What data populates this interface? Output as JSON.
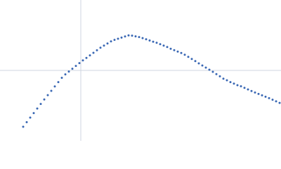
{
  "chart_data": {
    "type": "scatter",
    "xlim": [
      0,
      400
    ],
    "ylim": [
      0,
      200
    ],
    "reference_lines": {
      "x": 115,
      "y": 100,
      "color": "#cfd6e0"
    },
    "series": [
      {
        "color": "#3a68b4",
        "x": [
          33,
          38,
          43,
          48,
          53,
          58,
          63,
          68,
          73,
          78,
          83,
          88,
          93,
          98,
          103,
          108,
          113,
          118,
          123,
          128,
          133,
          138,
          143,
          148,
          153,
          158,
          163,
          168,
          173,
          178,
          183,
          188,
          193,
          198,
          203,
          208,
          213,
          218,
          223,
          228,
          233,
          238,
          243,
          248,
          253,
          258,
          263,
          268,
          273,
          278,
          283,
          288,
          293,
          298,
          303,
          308,
          313,
          318,
          323,
          328,
          333,
          338,
          343,
          348,
          353,
          358,
          363,
          368,
          373,
          378,
          383,
          388,
          393,
          398
        ],
        "values": [
          20,
          26.5,
          33,
          39.4,
          45.9,
          52.4,
          58.7,
          64.9,
          71,
          77.2,
          83.4,
          89.5,
          94.4,
          98.4,
          102.4,
          106.4,
          110.4,
          114.2,
          117.8,
          121.4,
          125,
          128.6,
          132.2,
          135.2,
          138.2,
          141.2,
          143.4,
          145,
          146.6,
          148.2,
          149.8,
          149.4,
          148.4,
          147.4,
          145.9,
          144.2,
          142.5,
          140.7,
          139.2,
          137.2,
          135.2,
          133.2,
          130.8,
          128.8,
          126.8,
          124.8,
          122.2,
          119.2,
          116.2,
          113.2,
          110,
          107,
          104,
          101,
          98,
          94.8,
          91.6,
          88.3,
          86,
          83.4,
          81.2,
          79,
          77.5,
          75.3,
          73,
          70.8,
          68.6,
          66.6,
          64.6,
          62.6,
          60.6,
          58.4,
          56.1,
          53.9
        ]
      }
    ]
  }
}
